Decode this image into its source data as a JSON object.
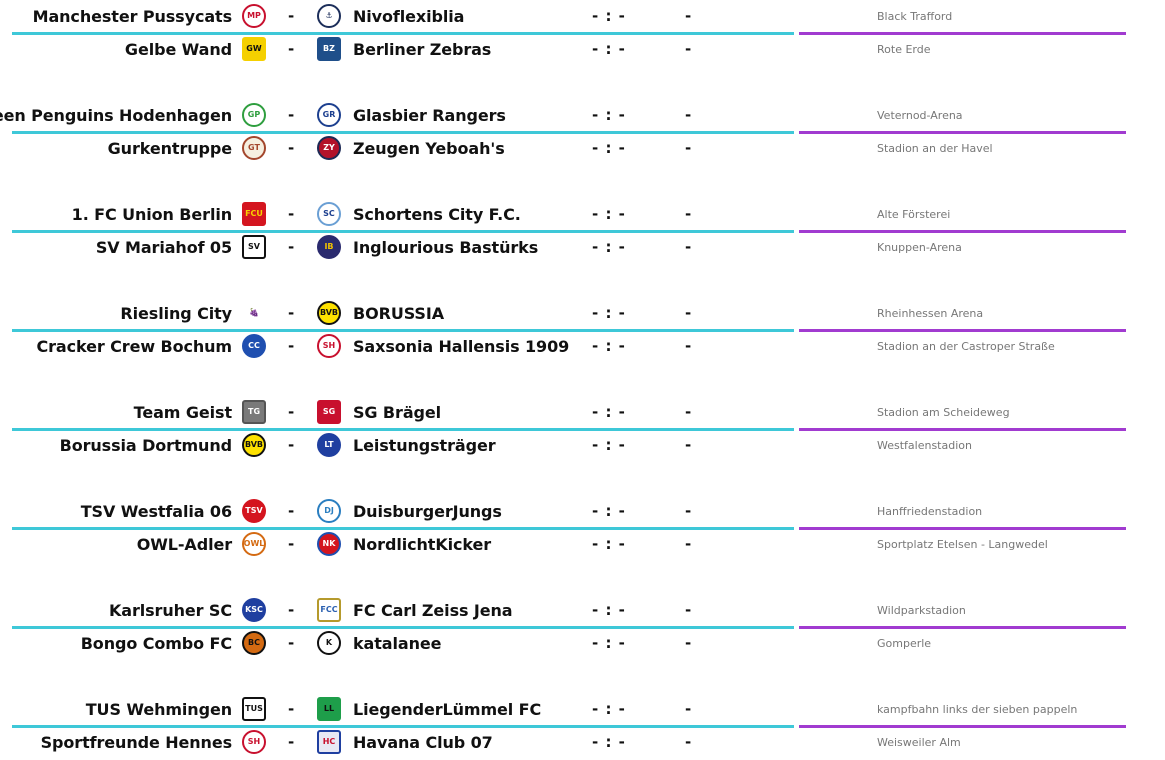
{
  "colors": {
    "left_divider": "#3ec8d8",
    "right_divider": "#a13bd0"
  },
  "matches": [
    {
      "home": "Manchester Pussycats",
      "home_logo": {
        "icon": "pussycats-crest-icon",
        "bg": "#ffffff",
        "fg": "#c8102e",
        "text": "MP",
        "border": "#c8102e",
        "shape": "round"
      },
      "sep": "-",
      "away": "Nivoflexiblia",
      "away_logo": {
        "icon": "anchor-crest-icon",
        "bg": "#ffffff",
        "fg": "#1c2e5a",
        "text": "⚓",
        "border": "#1c2e5a",
        "shape": "round"
      },
      "score": "- : -",
      "extra": "-",
      "venue": "Black Trafford"
    },
    {
      "home": "Gelbe Wand",
      "home_logo": {
        "icon": "gelbe-wand-crest-icon",
        "bg": "#f5d000",
        "fg": "#111111",
        "text": "GW",
        "border": "#f5d000",
        "shape": "square"
      },
      "sep": "-",
      "away": "Berliner Zebras",
      "away_logo": {
        "icon": "berliner-zebras-crest-icon",
        "bg": "#1f4f8a",
        "fg": "#ffffff",
        "text": "BZ",
        "border": "#1f4f8a",
        "shape": "square"
      },
      "score": "- : -",
      "extra": "-",
      "venue": "Rote Erde"
    },
    {
      "home": "Green Penguins Hodenhagen",
      "home_logo": {
        "icon": "penguin-crest-icon",
        "bg": "#ffffff",
        "fg": "#2e9e3e",
        "text": "GP",
        "border": "#2e9e3e",
        "shape": "round"
      },
      "sep": "-",
      "away": "Glasbier Rangers",
      "away_logo": {
        "icon": "rangers-crest-icon",
        "bg": "#ffffff",
        "fg": "#1c3f8f",
        "text": "GR",
        "border": "#1c3f8f",
        "shape": "round"
      },
      "score": "- : -",
      "extra": "-",
      "venue": "Veternod-Arena"
    },
    {
      "home": "Gurkentruppe",
      "home_logo": {
        "icon": "gurkentruppe-crest-icon",
        "bg": "#f6efe0",
        "fg": "#a3462c",
        "text": "GT",
        "border": "#a3462c",
        "shape": "round"
      },
      "sep": "-",
      "away": "Zeugen Yeboah's",
      "away_logo": {
        "icon": "yeboah-crest-icon",
        "bg": "#b3122a",
        "fg": "#ffffff",
        "text": "ZY",
        "border": "#1d2a55",
        "shape": "round"
      },
      "score": "- : -",
      "extra": "-",
      "venue": "Stadion an der Havel"
    },
    {
      "home": "1. FC Union Berlin",
      "home_logo": {
        "icon": "union-berlin-crest-icon",
        "bg": "#d4151f",
        "fg": "#f6d200",
        "text": "FCU",
        "border": "#d4151f",
        "shape": "square"
      },
      "sep": "-",
      "away": "Schortens City F.C.",
      "away_logo": {
        "icon": "schortens-crest-icon",
        "bg": "#ffffff",
        "fg": "#1c3f8f",
        "text": "SC",
        "border": "#6a9fd4",
        "shape": "round"
      },
      "score": "- : -",
      "extra": "-",
      "venue": "Alte Försterei"
    },
    {
      "home": "SV Mariahof 05",
      "home_logo": {
        "icon": "mariahof-crest-icon",
        "bg": "#ffffff",
        "fg": "#111111",
        "text": "SV",
        "border": "#111111",
        "shape": "square"
      },
      "sep": "-",
      "away": "Inglourious Bastürks",
      "away_logo": {
        "icon": "bastuerks-crest-icon",
        "bg": "#2a2a6e",
        "fg": "#f2c200",
        "text": "IB",
        "border": "#2a2a6e",
        "shape": "round"
      },
      "score": "- : -",
      "extra": "-",
      "venue": "Knuppen-Arena"
    },
    {
      "home": "Riesling City",
      "home_logo": {
        "icon": "grapes-crest-icon",
        "bg": "#ffffff",
        "fg": "#7a2d8f",
        "text": "🍇",
        "border": "#ffffff",
        "shape": "round"
      },
      "sep": "-",
      "away": "BORUSSIA",
      "away_logo": {
        "icon": "bvb-crest-icon",
        "bg": "#fde100",
        "fg": "#111111",
        "text": "BVB",
        "border": "#111111",
        "shape": "round"
      },
      "score": "- : -",
      "extra": "-",
      "venue": "Rheinhessen Arena"
    },
    {
      "home": "Cracker Crew Bochum",
      "home_logo": {
        "icon": "cracker-crew-crest-icon",
        "bg": "#1f4fb0",
        "fg": "#ffffff",
        "text": "CC",
        "border": "#1f4fb0",
        "shape": "round"
      },
      "sep": "-",
      "away": "Saxsonia Hallensis 1909",
      "away_logo": {
        "icon": "saxsonia-crest-icon",
        "bg": "#ffffff",
        "fg": "#c8102e",
        "text": "SH",
        "border": "#c8102e",
        "shape": "round"
      },
      "score": "- : -",
      "extra": "-",
      "venue": "Stadion an der Castroper Straße"
    },
    {
      "home": "Team Geist",
      "home_logo": {
        "icon": "ghost-crest-icon",
        "bg": "#7a7a7a",
        "fg": "#ffffff",
        "text": "TG",
        "border": "#555555",
        "shape": "square"
      },
      "sep": "-",
      "away": "SG Brägel",
      "away_logo": {
        "icon": "sg-braegel-crest-icon",
        "bg": "#c8102e",
        "fg": "#ffffff",
        "text": "SG",
        "border": "#c8102e",
        "shape": "square"
      },
      "score": "- : -",
      "extra": "-",
      "venue": "Stadion am Scheideweg"
    },
    {
      "home": "Borussia Dortmund",
      "home_logo": {
        "icon": "bvb-crest-icon",
        "bg": "#fde100",
        "fg": "#111111",
        "text": "BVB",
        "border": "#111111",
        "shape": "round"
      },
      "sep": "-",
      "away": "Leistungsträger",
      "away_logo": {
        "icon": "leistungstraeger-crest-icon",
        "bg": "#1f3fa0",
        "fg": "#ffffff",
        "text": "LT",
        "border": "#1f3fa0",
        "shape": "round"
      },
      "score": "- : -",
      "extra": "-",
      "venue": "Westfalenstadion"
    },
    {
      "home": "TSV Westfalia 06",
      "home_logo": {
        "icon": "westfalia-horse-crest-icon",
        "bg": "#d4151f",
        "fg": "#ffffff",
        "text": "TSV",
        "border": "#d4151f",
        "shape": "round"
      },
      "sep": "-",
      "away": "DuisburgerJungs",
      "away_logo": {
        "icon": "duisburg-crest-icon",
        "bg": "#ffffff",
        "fg": "#2a7ec0",
        "text": "DJ",
        "border": "#2a7ec0",
        "shape": "round"
      },
      "score": "- : -",
      "extra": "-",
      "venue": "Hanffriedenstadion"
    },
    {
      "home": "OWL-Adler",
      "home_logo": {
        "icon": "eagle-crest-icon",
        "bg": "#ffffff",
        "fg": "#d46a12",
        "text": "OWL",
        "border": "#d46a12",
        "shape": "round"
      },
      "sep": "-",
      "away": "NordlichtKicker",
      "away_logo": {
        "icon": "bayern-style-crest-icon",
        "bg": "#d4151f",
        "fg": "#ffffff",
        "text": "NK",
        "border": "#1f4fb0",
        "shape": "round"
      },
      "score": "- : -",
      "extra": "-",
      "venue": "Sportplatz Etelsen - Langwedel"
    },
    {
      "home": "Karlsruher SC",
      "home_logo": {
        "icon": "ksc-crest-icon",
        "bg": "#1f3fa0",
        "fg": "#ffffff",
        "text": "KSC",
        "border": "#1f3fa0",
        "shape": "round"
      },
      "sep": "-",
      "away": "FC Carl Zeiss Jena",
      "away_logo": {
        "icon": "carl-zeiss-crest-icon",
        "bg": "#ffffff",
        "fg": "#2a5fb0",
        "text": "FCC",
        "border": "#b59a2c",
        "shape": "square"
      },
      "score": "- : -",
      "extra": "-",
      "venue": "Wildparkstadion"
    },
    {
      "home": "Bongo Combo FC",
      "home_logo": {
        "icon": "bongo-combo-crest-icon",
        "bg": "#d46a12",
        "fg": "#111111",
        "text": "BC",
        "border": "#111111",
        "shape": "round"
      },
      "sep": "-",
      "away": "katalanee",
      "away_logo": {
        "icon": "katalanee-crest-icon",
        "bg": "#ffffff",
        "fg": "#111111",
        "text": "K",
        "border": "#111111",
        "shape": "round"
      },
      "score": "- : -",
      "extra": "-",
      "venue": "Gomperle"
    },
    {
      "home": "TUS Wehmingen",
      "home_logo": {
        "icon": "wehmingen-crest-icon",
        "bg": "#ffffff",
        "fg": "#111111",
        "text": "TUS",
        "border": "#111111",
        "shape": "square"
      },
      "sep": "-",
      "away": "LiegenderLümmel FC",
      "away_logo": {
        "icon": "liegender-luemmel-crest-icon",
        "bg": "#1e9e4a",
        "fg": "#111111",
        "text": "LL",
        "border": "#1e9e4a",
        "shape": "square"
      },
      "score": "- : -",
      "extra": "-",
      "venue": "kampfbahn links der sieben pappeln"
    },
    {
      "home": "Sportfreunde Hennes",
      "home_logo": {
        "icon": "hennes-crest-icon",
        "bg": "#ffffff",
        "fg": "#c8102e",
        "text": "SH",
        "border": "#c8102e",
        "shape": "round"
      },
      "sep": "-",
      "away": "Havana Club 07",
      "away_logo": {
        "icon": "havana-club-crest-icon",
        "bg": "#e8e8f4",
        "fg": "#c8102e",
        "text": "HC",
        "border": "#1f3fa0",
        "shape": "square"
      },
      "score": "- : -",
      "extra": "-",
      "venue": "Weisweiler Alm"
    }
  ]
}
